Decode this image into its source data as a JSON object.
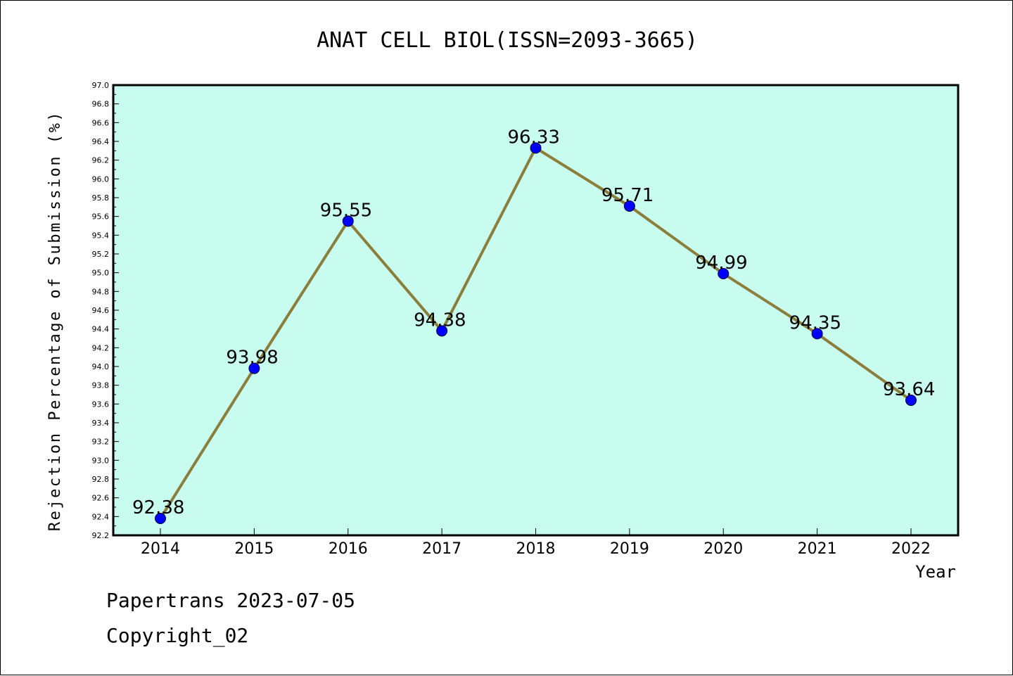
{
  "chart_data": {
    "type": "line",
    "title": "ANAT CELL BIOL(ISSN=2093-3665)",
    "xlabel": "Year",
    "ylabel": "Rejection Percentage of Submission (%)",
    "categories": [
      "2014",
      "2015",
      "2016",
      "2017",
      "2018",
      "2019",
      "2020",
      "2021",
      "2022"
    ],
    "series": [
      {
        "values": [
          92.38,
          93.98,
          95.55,
          94.38,
          96.33,
          95.71,
          94.99,
          94.35,
          93.64
        ],
        "data_labels": [
          "92.38",
          "93.98",
          "95.55",
          "94.38",
          "96.33",
          "95.71",
          "94.99",
          "94.35",
          "93.64"
        ],
        "line_color": "#8b7d3a",
        "marker_color": "#0000ff"
      }
    ],
    "ylim": [
      92.2,
      97.0
    ],
    "yticks": [
      "92.2",
      "92.4",
      "92.6",
      "92.8",
      "93.0",
      "93.2",
      "93.4",
      "93.6",
      "93.8",
      "94.0",
      "94.2",
      "94.4",
      "94.6",
      "94.8",
      "95.0",
      "95.2",
      "95.4",
      "95.6",
      "95.8",
      "96.0",
      "96.2",
      "96.4",
      "96.6",
      "96.8",
      "97.0"
    ],
    "plot_background": "#c8fcee",
    "grid": false,
    "legend": "none"
  },
  "footer": {
    "source": "Papertrans 2023-07-05",
    "copyright": "Copyright_02"
  }
}
